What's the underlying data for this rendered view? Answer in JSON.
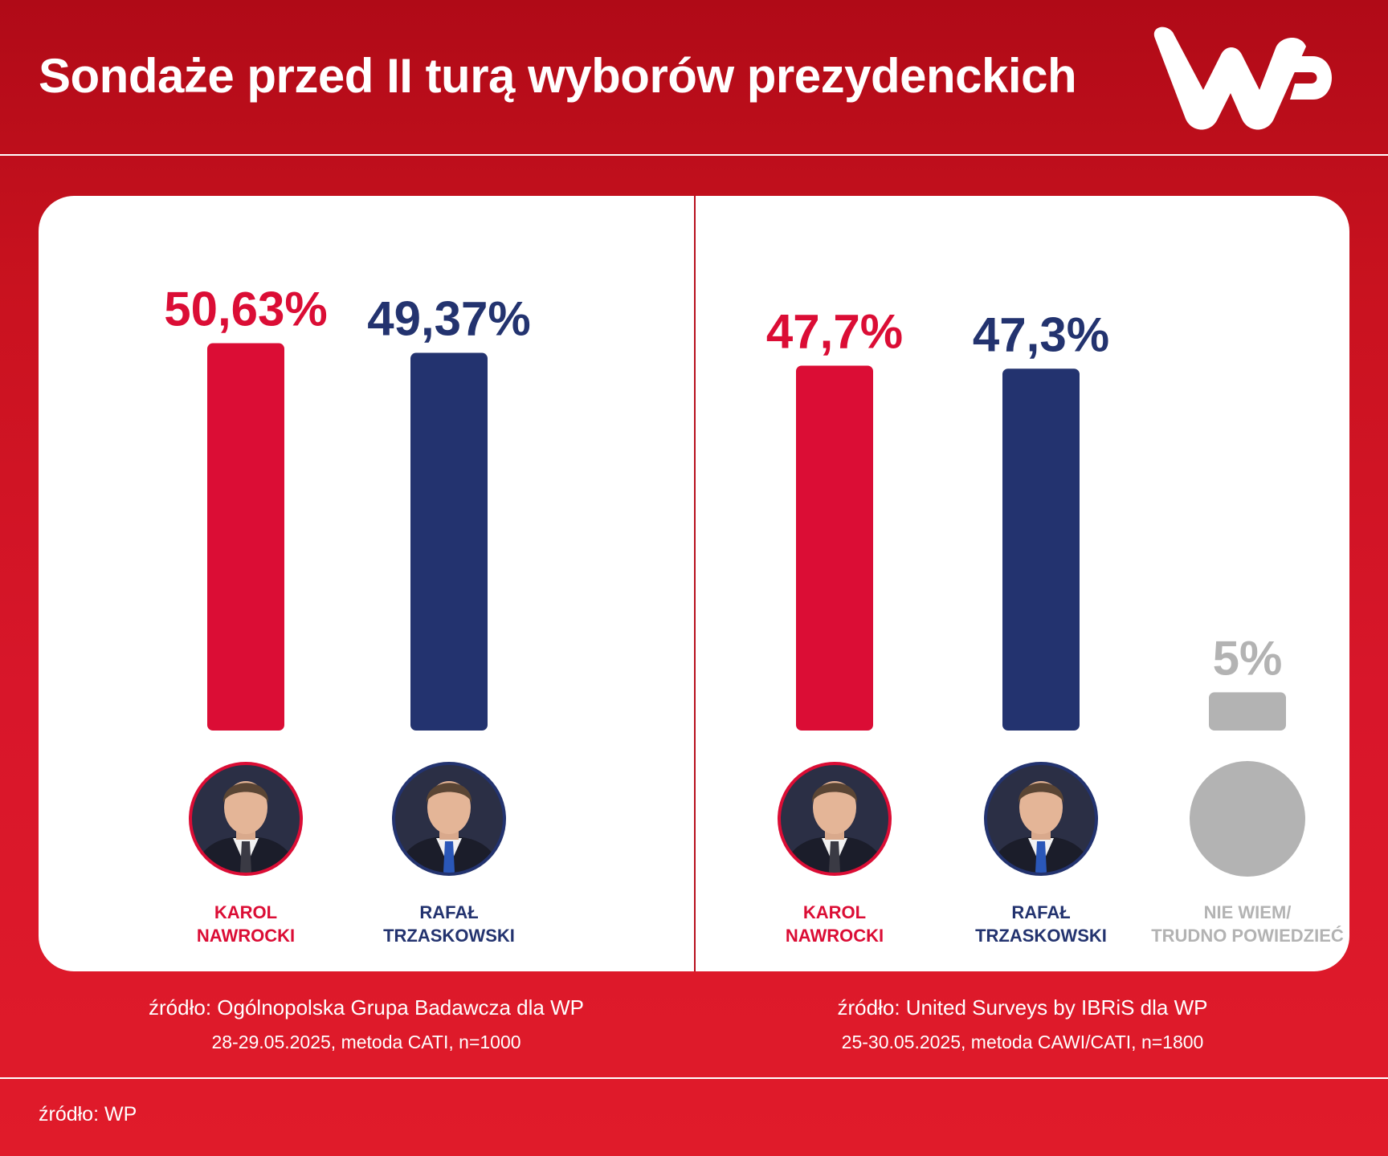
{
  "header": {
    "title": "Sondaże przed II turą wyborów prezydenckich"
  },
  "logo": {
    "text": "WP",
    "color": "#ffffff"
  },
  "colors": {
    "nawrocki": "#db0d35",
    "trzaskowski": "#23336f",
    "undecided": "#b3b3b3"
  },
  "chart_data": [
    {
      "type": "bar",
      "categories": [
        "KAROL NAWROCKI",
        "RAFAŁ TRZASKOWSKI"
      ],
      "name_lines": [
        [
          "KAROL",
          "NAWROCKI"
        ],
        [
          "RAFAŁ",
          "TRZASKOWSKI"
        ]
      ],
      "values": [
        50.63,
        49.37
      ],
      "value_labels": [
        "50,63%",
        "49,37%"
      ],
      "ylim": [
        0,
        51
      ],
      "source": "źródło: Ogólnopolska Grupa Badawcza dla WP",
      "method": "28-29.05.2025, metoda CATI, n=1000"
    },
    {
      "type": "bar",
      "categories": [
        "KAROL NAWROCKI",
        "RAFAŁ TRZASKOWSKI",
        "NIE WIEM/ TRUDNO POWIEDZIEĆ"
      ],
      "name_lines": [
        [
          "KAROL",
          "NAWROCKI"
        ],
        [
          "RAFAŁ",
          "TRZASKOWSKI"
        ],
        [
          "NIE WIEM/",
          "TRUDNO POWIEDZIEĆ"
        ]
      ],
      "values": [
        47.7,
        47.3,
        5
      ],
      "value_labels": [
        "47,7%",
        "47,3%",
        "5%"
      ],
      "ylim": [
        0,
        51
      ],
      "source": "źródło: United Surveys by IBRiS dla WP",
      "method": "25-30.05.2025, metoda CAWI/CATI, n=1800"
    }
  ],
  "footer": {
    "source": "źródło: WP"
  }
}
